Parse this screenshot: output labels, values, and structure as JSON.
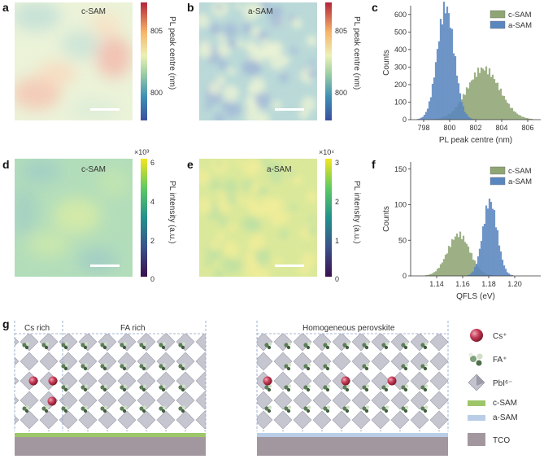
{
  "panels": {
    "a": {
      "letter": "a",
      "inset": "c-SAM"
    },
    "b": {
      "letter": "b",
      "inset": "a-SAM"
    },
    "c": {
      "letter": "c"
    },
    "d": {
      "letter": "d",
      "inset": "c-SAM"
    },
    "e": {
      "letter": "e",
      "inset": "a-SAM"
    },
    "f": {
      "letter": "f"
    },
    "g": {
      "letter": "g"
    }
  },
  "colorbars": {
    "ab": {
      "label": "PL peak centre (nm)",
      "ticks": [
        "805",
        "800"
      ]
    },
    "d": {
      "label": "PL intensity (a.u.)",
      "multiplier": "×10³",
      "ticks": [
        "6",
        "4",
        "2",
        "0"
      ]
    },
    "e": {
      "label": "PL intensity (a.u.)",
      "multiplier": "×10⁴",
      "ticks": [
        "3",
        "2",
        "1",
        "0"
      ]
    }
  },
  "colors": {
    "c_sam": "#8fa674",
    "a_sam": "#5a86bf",
    "c_sam_layer": "#9dc66a",
    "a_sam_layer": "#b9cde6",
    "tco": "#a3979f",
    "octahedron": "#b3b3c0",
    "cs": "#b0304a",
    "fa": "#5e7d5a"
  },
  "chart_data": [
    {
      "panel": "c",
      "type": "bar",
      "xlabel": "PL peak centre (nm)",
      "ylabel": "Counts",
      "xlim": [
        797,
        807
      ],
      "ylim": [
        0,
        650
      ],
      "xticks": [
        "798",
        "800",
        "802",
        "804",
        "806"
      ],
      "yticks": [
        "0",
        "100",
        "200",
        "300",
        "400",
        "500",
        "600"
      ],
      "series": [
        {
          "name": "c-SAM",
          "center": 802.6,
          "sigma": 1.25,
          "peak": 290
        },
        {
          "name": "a-SAM",
          "center": 799.7,
          "sigma": 0.65,
          "peak": 640
        }
      ]
    },
    {
      "panel": "f",
      "type": "bar",
      "xlabel": "QFLS (eV)",
      "ylabel": "Counts",
      "xlim": [
        1.12,
        1.22
      ],
      "ylim": [
        0,
        160
      ],
      "xticks": [
        "1.14",
        "1.16",
        "1.18",
        "1.20"
      ],
      "yticks": [
        "0",
        "50",
        "100",
        "150"
      ],
      "series": [
        {
          "name": "c-SAM",
          "center": 1.157,
          "sigma": 0.0085,
          "peak": 58
        },
        {
          "name": "a-SAM",
          "center": 1.181,
          "sigma": 0.0055,
          "peak": 105
        }
      ]
    }
  ],
  "schematic": {
    "left_regions": [
      "Cs rich",
      "FA rich"
    ],
    "right_region": "Homogeneous perovskite",
    "legend": [
      {
        "key": "cs",
        "label": "Cs⁺"
      },
      {
        "key": "fa",
        "label": "FA⁺"
      },
      {
        "key": "pbi",
        "label": "PbI⁶⁻"
      },
      {
        "key": "csam",
        "label": "c-SAM"
      },
      {
        "key": "asam",
        "label": "a-SAM"
      },
      {
        "key": "tco",
        "label": "TCO"
      }
    ]
  }
}
